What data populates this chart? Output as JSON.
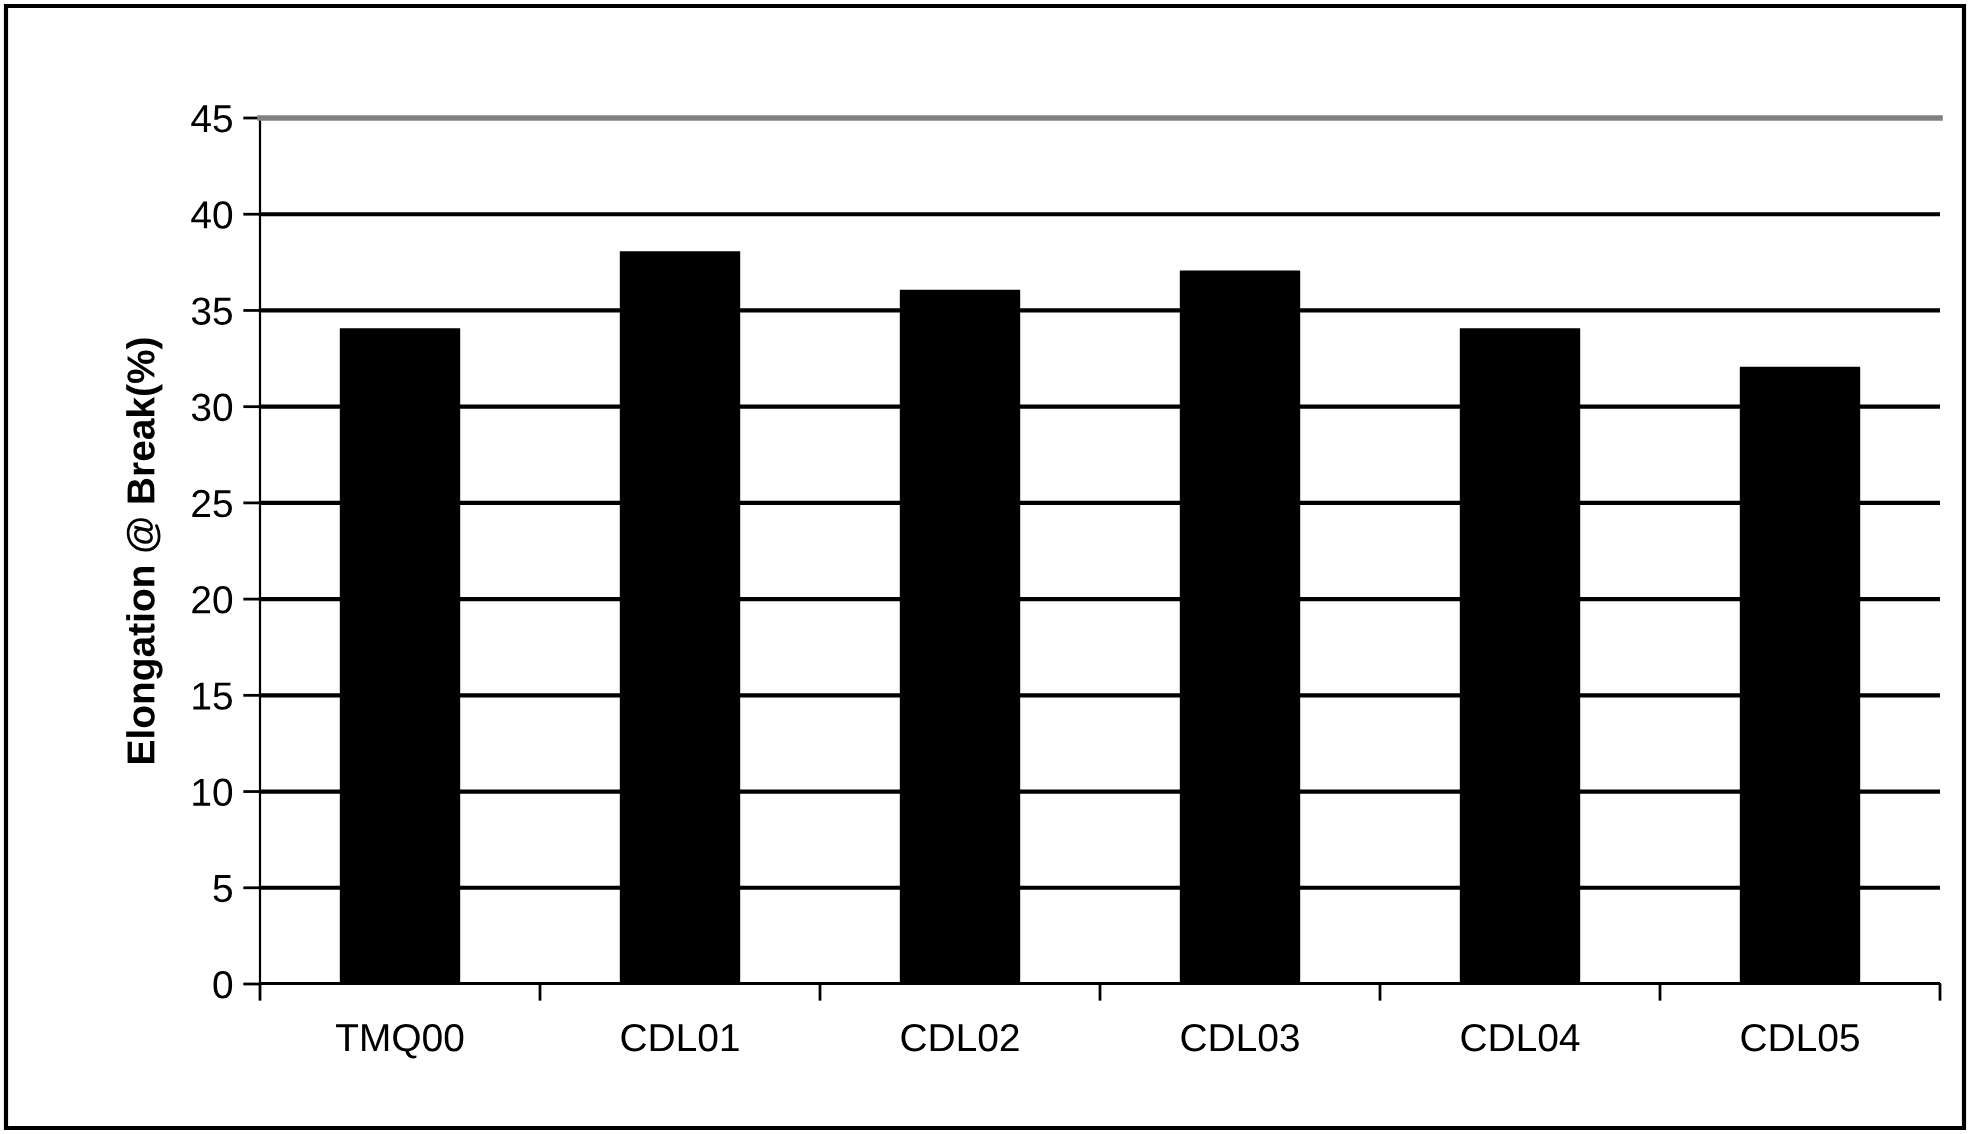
{
  "chart_data": {
    "type": "bar",
    "ylabel": "Elongation @ Break(%)",
    "categories": [
      "TMQ00",
      "CDL01",
      "CDL02",
      "CDL03",
      "CDL04",
      "CDL05"
    ],
    "values": [
      34,
      38,
      36,
      37,
      34,
      32
    ],
    "color": "#000000",
    "ylim": [
      0,
      45
    ],
    "yticks": [
      0,
      5,
      10,
      15,
      20,
      25,
      30,
      35,
      40,
      45
    ],
    "grid": "y"
  }
}
